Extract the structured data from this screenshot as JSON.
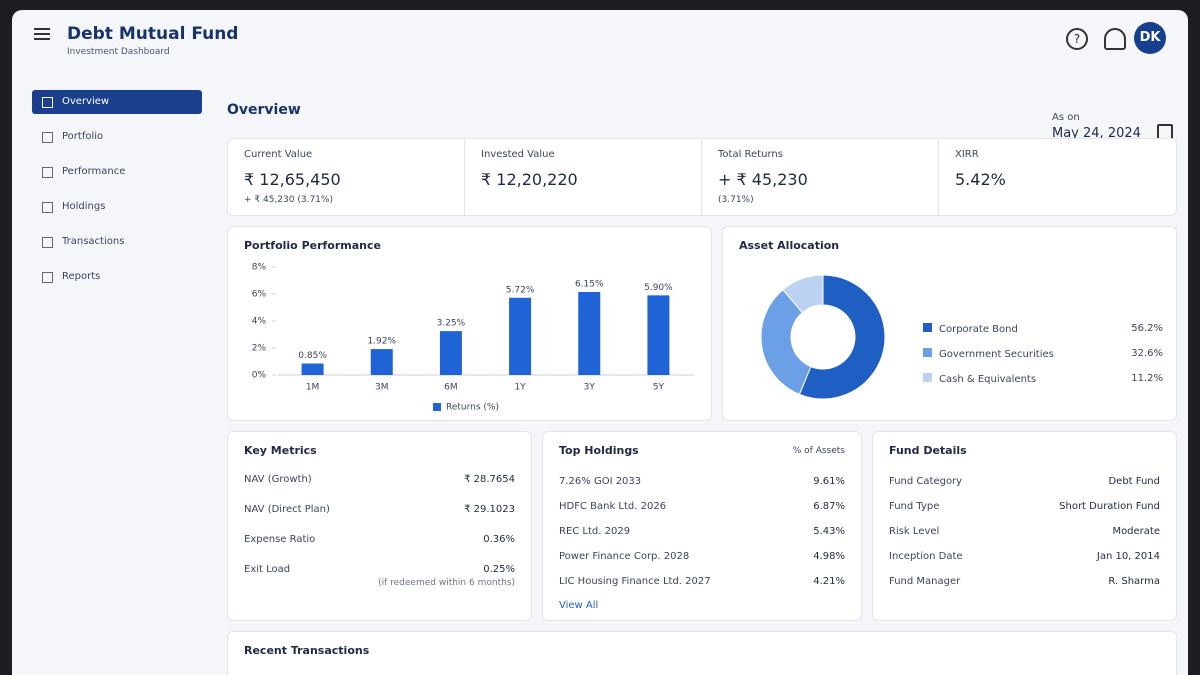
{
  "header": {
    "title": "Debt Mutual Fund",
    "subtitle": "Investment Dashboard",
    "avatar": "DK"
  },
  "nav": [
    "Overview",
    "Portfolio",
    "Performance",
    "Holdings",
    "Transactions",
    "Reports"
  ],
  "overview": {
    "title": "Overview",
    "as_on_label": "As on",
    "as_on_date": "May 24, 2024"
  },
  "summary": [
    {
      "label": "Current Value",
      "value": "₹ 12,65,450",
      "sub": "+ ₹ 45,230 (3.71%)"
    },
    {
      "label": "Invested Value",
      "value": "₹ 12,20,220"
    },
    {
      "label": "Total Returns",
      "value": "+ ₹ 45,230",
      "sub": "(3.71%)"
    },
    {
      "label": "XIRR",
      "value": "5.42%"
    }
  ],
  "chart_data": [
    {
      "type": "bar",
      "title": "Portfolio Performance",
      "categories": [
        "1M",
        "3M",
        "6M",
        "1Y",
        "3Y",
        "5Y"
      ],
      "series": [
        {
          "name": "Returns (%)",
          "color": "#1f63d6",
          "values": [
            0.85,
            1.92,
            3.25,
            5.72,
            6.15,
            5.9
          ],
          "value_labels": [
            "0.85%",
            "1.92%",
            "3.25%",
            "5.72%",
            "6.15%",
            "5.90%"
          ]
        }
      ],
      "ylim": [
        0,
        8
      ],
      "yticks": [
        {
          "value": 0,
          "label": "0%"
        },
        {
          "value": 2,
          "label": "2%"
        },
        {
          "value": 4,
          "label": "4%"
        },
        {
          "value": 6,
          "label": "6%"
        },
        {
          "value": 8,
          "label": "8%"
        }
      ],
      "grid": false,
      "legend": "bottom"
    },
    {
      "type": "pie",
      "title": "Asset Allocation",
      "categories": [
        "Corporate Bond",
        "Government Securities",
        "Cash & Equivalents"
      ],
      "values": [
        56.2,
        32.6,
        11.2
      ],
      "value_labels": [
        "56.2%",
        "32.6%",
        "11.2%"
      ],
      "colors": [
        "#1f5fc4",
        "#6b9fe6",
        "#bcd2f3"
      ],
      "donut": true,
      "legend": "right"
    }
  ],
  "key_metrics": {
    "title": "Key Metrics",
    "rows": [
      {
        "label": "NAV (Growth)",
        "value": "₹ 28.7654"
      },
      {
        "label": "NAV (Direct Plan)",
        "value": "₹ 29.1023"
      },
      {
        "label": "Expense Ratio",
        "value": "0.36%"
      },
      {
        "label": "Exit Load",
        "value": "0.25%",
        "note": "(if redeemed within 6 months)"
      }
    ]
  },
  "top_holdings": {
    "title": "Top Holdings",
    "column": "% of Assets",
    "rows": [
      [
        "7.26% GOI 2033",
        "9.61%"
      ],
      [
        "HDFC Bank Ltd. 2026",
        "6.87%"
      ],
      [
        "REC Ltd. 2029",
        "5.43%"
      ],
      [
        "Power Finance Corp. 2028",
        "4.98%"
      ],
      [
        "LIC Housing Finance Ltd. 2027",
        "4.21%"
      ]
    ],
    "link": "View All"
  },
  "fund_details": {
    "title": "Fund Details",
    "rows": [
      [
        "Fund Category",
        "Debt Fund"
      ],
      [
        "Fund Type",
        "Short Duration Fund"
      ],
      [
        "Risk Level",
        "Moderate"
      ],
      [
        "Inception Date",
        "Jan 10, 2014"
      ],
      [
        "Fund Manager",
        "R. Sharma"
      ]
    ]
  },
  "recent": {
    "title": "Recent Transactions"
  }
}
